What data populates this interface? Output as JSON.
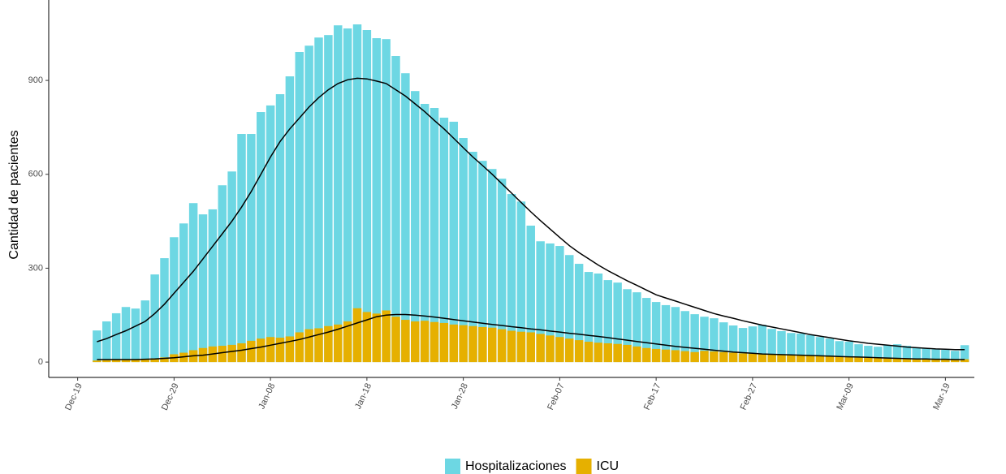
{
  "chart_data": {
    "type": "bar",
    "y_label": "Cantidad de pacientes",
    "x": [
      "Dec-21",
      "Dec-22",
      "Dec-23",
      "Dec-24",
      "Dec-25",
      "Dec-26",
      "Dec-27",
      "Dec-28",
      "Dec-29",
      "Dec-30",
      "Dec-31",
      "Jan-01",
      "Jan-02",
      "Jan-03",
      "Jan-04",
      "Jan-05",
      "Jan-06",
      "Jan-07",
      "Jan-08",
      "Jan-09",
      "Jan-10",
      "Jan-11",
      "Jan-12",
      "Jan-13",
      "Jan-14",
      "Jan-15",
      "Jan-16",
      "Jan-17",
      "Jan-18",
      "Jan-19",
      "Jan-20",
      "Jan-21",
      "Jan-22",
      "Jan-23",
      "Jan-24",
      "Jan-25",
      "Jan-26",
      "Jan-27",
      "Jan-28",
      "Jan-29",
      "Jan-30",
      "Jan-31",
      "Feb-01",
      "Feb-02",
      "Feb-03",
      "Feb-04",
      "Feb-05",
      "Feb-06",
      "Feb-07",
      "Feb-08",
      "Feb-09",
      "Feb-10",
      "Feb-11",
      "Feb-12",
      "Feb-13",
      "Feb-14",
      "Feb-15",
      "Feb-16",
      "Feb-17",
      "Feb-18",
      "Feb-19",
      "Feb-20",
      "Feb-21",
      "Feb-22",
      "Feb-23",
      "Feb-24",
      "Feb-25",
      "Feb-26",
      "Feb-27",
      "Feb-28",
      "Mar-01",
      "Mar-02",
      "Mar-03",
      "Mar-04",
      "Mar-05",
      "Mar-06",
      "Mar-07",
      "Mar-08",
      "Mar-09",
      "Mar-10",
      "Mar-11",
      "Mar-12",
      "Mar-13",
      "Mar-14",
      "Mar-15",
      "Mar-16",
      "Mar-17",
      "Mar-18",
      "Mar-19",
      "Mar-20",
      "Mar-21"
    ],
    "series": [
      {
        "name": "Hospitalizaciones",
        "color": "#6dd7e3",
        "values": [
          101,
          130,
          156,
          176,
          171,
          197,
          280,
          332,
          399,
          443,
          508,
          472,
          488,
          565,
          609,
          729,
          729,
          799,
          820,
          856,
          913,
          991,
          1011,
          1037,
          1045,
          1076,
          1066,
          1079,
          1061,
          1035,
          1032,
          978,
          923,
          866,
          825,
          812,
          781,
          768,
          716,
          672,
          643,
          617,
          586,
          537,
          513,
          436,
          386,
          379,
          371,
          342,
          314,
          288,
          283,
          262,
          254,
          233,
          223,
          205,
          192,
          182,
          176,
          163,
          153,
          145,
          140,
          127,
          117,
          109,
          114,
          119,
          106,
          99,
          93,
          91,
          86,
          80,
          75,
          67,
          65,
          57,
          52,
          49,
          54,
          57,
          52,
          47,
          44,
          41,
          39,
          36,
          54
        ]
      },
      {
        "name": "ICU",
        "color": "#e6b000",
        "values": [
          5,
          6,
          7,
          8,
          8,
          10,
          12,
          15,
          25,
          30,
          38,
          45,
          50,
          52,
          55,
          60,
          68,
          75,
          80,
          78,
          82,
          95,
          105,
          108,
          115,
          120,
          130,
          172,
          160,
          155,
          165,
          145,
          135,
          130,
          132,
          128,
          125,
          120,
          118,
          115,
          112,
          110,
          105,
          100,
          97,
          95,
          90,
          85,
          80,
          75,
          70,
          65,
          62,
          60,
          58,
          55,
          50,
          45,
          42,
          40,
          38,
          35,
          32,
          36,
          34,
          32,
          30,
          28,
          27,
          26,
          25,
          24,
          23,
          22,
          22,
          21,
          20,
          18,
          16,
          15,
          14,
          13,
          12,
          12,
          11,
          10,
          10,
          9,
          9,
          8,
          9
        ]
      }
    ],
    "smoothed": [
      {
        "color": "#000000",
        "values": [
          65,
          75,
          88,
          100,
          115,
          130,
          155,
          185,
          220,
          255,
          290,
          330,
          370,
          410,
          450,
          495,
          545,
          600,
          655,
          705,
          745,
          780,
          815,
          845,
          870,
          890,
          902,
          907,
          905,
          898,
          890,
          870,
          850,
          825,
          800,
          772,
          745,
          715,
          685,
          655,
          628,
          600,
          570,
          540,
          510,
          480,
          452,
          425,
          398,
          372,
          350,
          330,
          310,
          292,
          276,
          260,
          245,
          230,
          215,
          205,
          195,
          185,
          175,
          165,
          155,
          147,
          140,
          132,
          125,
          118,
          112,
          106,
          100,
          94,
          88,
          83,
          78,
          73,
          68,
          64,
          60,
          57,
          54,
          51,
          48,
          46,
          44,
          42,
          41,
          40,
          40
        ]
      },
      {
        "color": "#000000",
        "values": [
          8,
          8,
          8,
          8,
          8,
          9,
          10,
          12,
          14,
          17,
          20,
          22,
          26,
          30,
          34,
          38,
          43,
          48,
          54,
          60,
          66,
          72,
          80,
          88,
          96,
          105,
          115,
          125,
          135,
          145,
          150,
          152,
          152,
          150,
          147,
          144,
          140,
          136,
          132,
          128,
          124,
          120,
          117,
          113,
          110,
          106,
          103,
          99,
          96,
          92,
          89,
          85,
          82,
          78,
          74,
          70,
          66,
          62,
          58,
          54,
          50,
          47,
          44,
          41,
          38,
          35,
          32,
          30,
          28,
          26,
          25,
          24,
          23,
          22,
          21,
          20,
          19,
          18,
          17,
          16,
          15,
          14,
          13,
          12,
          11,
          10,
          10,
          9,
          9,
          8,
          8
        ]
      }
    ],
    "xlim": [
      "Dec-16",
      "Mar-22"
    ],
    "xticks": [
      "Dec-19",
      "Dec-29",
      "Jan-08",
      "Jan-18",
      "Jan-28",
      "Feb-07",
      "Feb-17",
      "Feb-27",
      "Mar-09",
      "Mar-19"
    ],
    "ylim": [
      -49,
      1144
    ],
    "yticks": [
      0,
      300,
      600,
      900
    ],
    "grid": false
  }
}
